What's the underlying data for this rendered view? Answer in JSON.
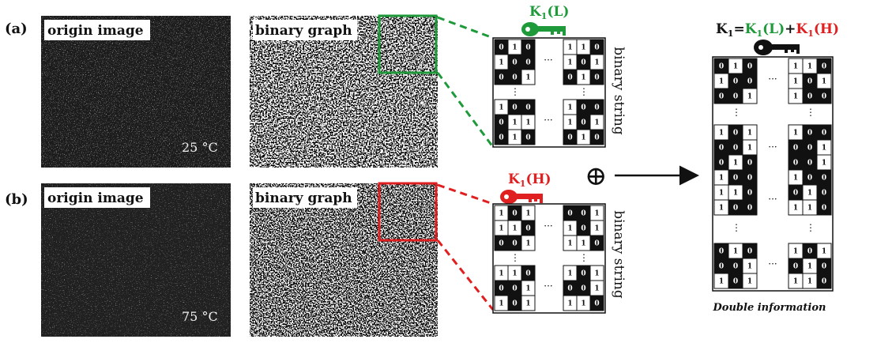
{
  "colors": {
    "green": "#1e9a3a",
    "red": "#e02020",
    "black": "#111111"
  },
  "rows": [
    {
      "label": "(a)",
      "origin_title": "origin image",
      "binary_title": "binary graph",
      "temperature": "25 °C",
      "key_label": "K",
      "key_sub": "1",
      "key_suffix": "(L)",
      "accent": "green",
      "binary_string": "binary string",
      "grid": {
        "tl": [
          "010",
          "100",
          "001"
        ],
        "tr": [
          "110",
          "101",
          "010"
        ],
        "bl": [
          "100",
          "011",
          "010"
        ],
        "br": [
          "100",
          "101",
          "010"
        ]
      }
    },
    {
      "label": "(b)",
      "origin_title": "origin image",
      "binary_title": "binary graph",
      "temperature": "75 °C",
      "key_label": "K",
      "key_sub": "1",
      "key_suffix": "(H)",
      "accent": "red",
      "binary_string": "binary string",
      "grid": {
        "tl": [
          "101",
          "110",
          "001"
        ],
        "tr": [
          "001",
          "101",
          "110"
        ],
        "bl": [
          "110",
          "001",
          "101"
        ],
        "br": [
          "101",
          "001",
          "110"
        ]
      }
    }
  ],
  "xor_symbol": "⊕",
  "combined": {
    "formula": {
      "lhs_main": "K",
      "lhs_sub": "1",
      "eq": "=",
      "l_main": "K",
      "l_sub": "1",
      "l_suffix": "(L)",
      "plus": "+",
      "h_main": "K",
      "h_sub": "1",
      "h_suffix": "(H)"
    },
    "ellipsis_v": "⋮",
    "ellipsis_h": "···",
    "caption": "Double information",
    "grid": {
      "g1_left": [
        "010",
        "100",
        "001"
      ],
      "g1_right": [
        "110",
        "101",
        "100"
      ],
      "g2_left": [
        "101",
        "001",
        "010",
        "100",
        "110",
        "100"
      ],
      "g2_right": [
        "100",
        "001",
        "001",
        "100",
        "010",
        "110"
      ],
      "g3_left": [
        "010",
        "001",
        "101"
      ],
      "g3_right": [
        "101",
        "010",
        "110"
      ]
    }
  }
}
